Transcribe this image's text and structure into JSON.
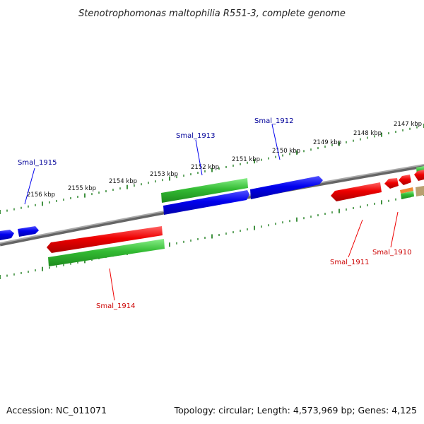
{
  "title": "Stenotrophomonas maltophilia R551-3, complete genome",
  "footer": {
    "accession": "Accession: NC_011071",
    "summary": "Topology: circular; Length: 4,573,969 bp; Genes: 4,125"
  },
  "colors": {
    "forward": "#0000ee",
    "reverse": "#ee0000",
    "rna": "#33bb33",
    "ticks": "#117711",
    "backbone": "#888888",
    "forward_label": "#000099",
    "reverse_label": "#cc0000"
  },
  "scale_labels": [
    "2156 kbp",
    "2155 kbp",
    "2154 kbp",
    "2153 kbp",
    "2152 kbp",
    "2151 kbp",
    "2150 kbp",
    "2149 kbp",
    "2148 kbp",
    "2147 kbp"
  ],
  "gene_labels": [
    {
      "text": "Smal_1915",
      "strand": "forward"
    },
    {
      "text": "Smal_1913",
      "strand": "forward"
    },
    {
      "text": "Smal_1912",
      "strand": "forward"
    },
    {
      "text": "Smal_1914",
      "strand": "reverse"
    },
    {
      "text": "Smal_1911",
      "strand": "reverse"
    },
    {
      "text": "Smal_1910",
      "strand": "reverse"
    }
  ]
}
